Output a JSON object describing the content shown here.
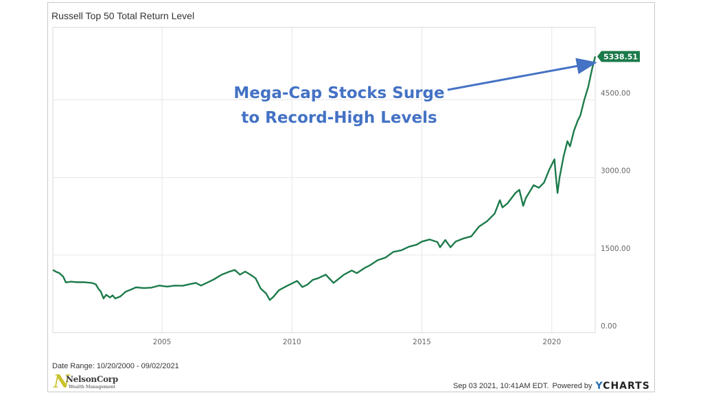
{
  "chart_data": {
    "type": "line",
    "title": "Russell Top 50 Total Return Level",
    "xlabel": "",
    "ylabel": "",
    "xlim": [
      2000.8,
      2021.67
    ],
    "ylim": [
      0,
      5900
    ],
    "x_ticks": [
      "2005",
      "2010",
      "2015",
      "2020"
    ],
    "x_tick_values": [
      2005,
      2010,
      2015,
      2020
    ],
    "y_ticks": [
      "0.00",
      "1500.00",
      "3000.00",
      "4500.00"
    ],
    "y_tick_values": [
      0,
      1500,
      3000,
      4500
    ],
    "grid": true,
    "legend": "none",
    "series": [
      {
        "color": "#1b7a4a",
        "points": [
          [
            2000.8,
            1210
          ],
          [
            2000.95,
            1170
          ],
          [
            2001.05,
            1150
          ],
          [
            2001.2,
            1080
          ],
          [
            2001.3,
            970
          ],
          [
            2001.5,
            985
          ],
          [
            2001.7,
            975
          ],
          [
            2002.0,
            975
          ],
          [
            2002.3,
            960
          ],
          [
            2002.45,
            935
          ],
          [
            2002.55,
            850
          ],
          [
            2002.65,
            790
          ],
          [
            2002.75,
            660
          ],
          [
            2002.85,
            730
          ],
          [
            2003.0,
            680
          ],
          [
            2003.1,
            720
          ],
          [
            2003.2,
            660
          ],
          [
            2003.4,
            700
          ],
          [
            2003.6,
            790
          ],
          [
            2003.8,
            830
          ],
          [
            2004.0,
            875
          ],
          [
            2004.3,
            860
          ],
          [
            2004.6,
            870
          ],
          [
            2004.9,
            910
          ],
          [
            2005.2,
            890
          ],
          [
            2005.5,
            910
          ],
          [
            2005.8,
            905
          ],
          [
            2006.0,
            930
          ],
          [
            2006.3,
            960
          ],
          [
            2006.5,
            910
          ],
          [
            2006.8,
            980
          ],
          [
            2007.0,
            1030
          ],
          [
            2007.3,
            1120
          ],
          [
            2007.6,
            1180
          ],
          [
            2007.8,
            1210
          ],
          [
            2008.0,
            1120
          ],
          [
            2008.2,
            1180
          ],
          [
            2008.4,
            1120
          ],
          [
            2008.6,
            1050
          ],
          [
            2008.8,
            850
          ],
          [
            2009.0,
            760
          ],
          [
            2009.15,
            630
          ],
          [
            2009.3,
            700
          ],
          [
            2009.5,
            820
          ],
          [
            2009.8,
            900
          ],
          [
            2010.0,
            950
          ],
          [
            2010.2,
            1000
          ],
          [
            2010.4,
            880
          ],
          [
            2010.6,
            930
          ],
          [
            2010.8,
            1020
          ],
          [
            2011.0,
            1050
          ],
          [
            2011.3,
            1120
          ],
          [
            2011.6,
            960
          ],
          [
            2011.8,
            1040
          ],
          [
            2012.0,
            1120
          ],
          [
            2012.3,
            1200
          ],
          [
            2012.5,
            1150
          ],
          [
            2012.8,
            1250
          ],
          [
            2013.0,
            1300
          ],
          [
            2013.3,
            1400
          ],
          [
            2013.6,
            1450
          ],
          [
            2013.9,
            1560
          ],
          [
            2014.2,
            1590
          ],
          [
            2014.5,
            1660
          ],
          [
            2014.8,
            1700
          ],
          [
            2015.0,
            1760
          ],
          [
            2015.3,
            1800
          ],
          [
            2015.6,
            1750
          ],
          [
            2015.7,
            1650
          ],
          [
            2015.9,
            1790
          ],
          [
            2016.1,
            1650
          ],
          [
            2016.3,
            1760
          ],
          [
            2016.6,
            1820
          ],
          [
            2016.9,
            1860
          ],
          [
            2017.2,
            2050
          ],
          [
            2017.5,
            2150
          ],
          [
            2017.8,
            2300
          ],
          [
            2018.0,
            2560
          ],
          [
            2018.1,
            2420
          ],
          [
            2018.3,
            2500
          ],
          [
            2018.6,
            2700
          ],
          [
            2018.75,
            2760
          ],
          [
            2018.9,
            2450
          ],
          [
            2019.0,
            2600
          ],
          [
            2019.3,
            2850
          ],
          [
            2019.5,
            2800
          ],
          [
            2019.7,
            2900
          ],
          [
            2019.9,
            3150
          ],
          [
            2020.1,
            3350
          ],
          [
            2020.15,
            3050
          ],
          [
            2020.22,
            2700
          ],
          [
            2020.3,
            3000
          ],
          [
            2020.45,
            3400
          ],
          [
            2020.6,
            3700
          ],
          [
            2020.7,
            3600
          ],
          [
            2020.85,
            3900
          ],
          [
            2021.0,
            4100
          ],
          [
            2021.1,
            4200
          ],
          [
            2021.25,
            4500
          ],
          [
            2021.4,
            4750
          ],
          [
            2021.55,
            5100
          ],
          [
            2021.67,
            5338.51
          ]
        ]
      }
    ],
    "last_value_label": "5338.51",
    "annotation": [
      "Mega-Cap Stocks Surge",
      "to Record-High Levels"
    ]
  },
  "footer": {
    "date_range": "Date Range: 10/20/2000 - 09/02/2021",
    "timestamp": "Sep 03 2021, 10:41AM EDT.",
    "powered_by": "Powered by",
    "brand_y": "Y",
    "brand_rest": "CHARTS"
  },
  "logo": {
    "mark": "N",
    "name": "NelsonCorp",
    "sub": "Wealth Management"
  },
  "colors": {
    "line": "#1b7a4a",
    "badge": "#1b7a4a",
    "annotation": "#4472c4",
    "grid": "#e6e6e6"
  }
}
